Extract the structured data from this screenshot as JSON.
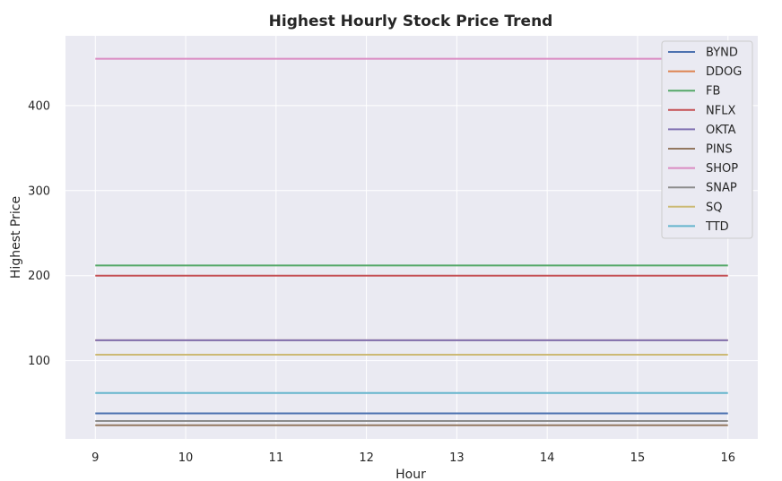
{
  "chart_data": {
    "type": "line",
    "title": "Highest Hourly Stock Price Trend",
    "xlabel": "Hour",
    "ylabel": "Highest Price",
    "x": [
      9,
      10,
      11,
      12,
      13,
      14,
      15,
      16
    ],
    "xlim": [
      8.67,
      16.33
    ],
    "ylim": [
      8,
      482
    ],
    "xticks": [
      9,
      10,
      11,
      12,
      13,
      14,
      15,
      16
    ],
    "yticks": [
      100,
      200,
      300,
      400
    ],
    "grid": true,
    "legend_position": "top-right",
    "series": [
      {
        "name": "BYND",
        "value": 38,
        "color": "#4c72b0"
      },
      {
        "name": "DDOG",
        "value": 124,
        "color": "#dd8452"
      },
      {
        "name": "FB",
        "value": 212,
        "color": "#55a868"
      },
      {
        "name": "NFLX",
        "value": 200,
        "color": "#c44e52"
      },
      {
        "name": "OKTA",
        "value": 124,
        "color": "#8172b3"
      },
      {
        "name": "PINS",
        "value": 24,
        "color": "#937860"
      },
      {
        "name": "SHOP",
        "value": 455,
        "color": "#da8bc3"
      },
      {
        "name": "SNAP",
        "value": 29,
        "color": "#8c8c8c"
      },
      {
        "name": "SQ",
        "value": 107,
        "color": "#ccb974"
      },
      {
        "name": "TTD",
        "value": 62,
        "color": "#64b5cd"
      }
    ]
  }
}
